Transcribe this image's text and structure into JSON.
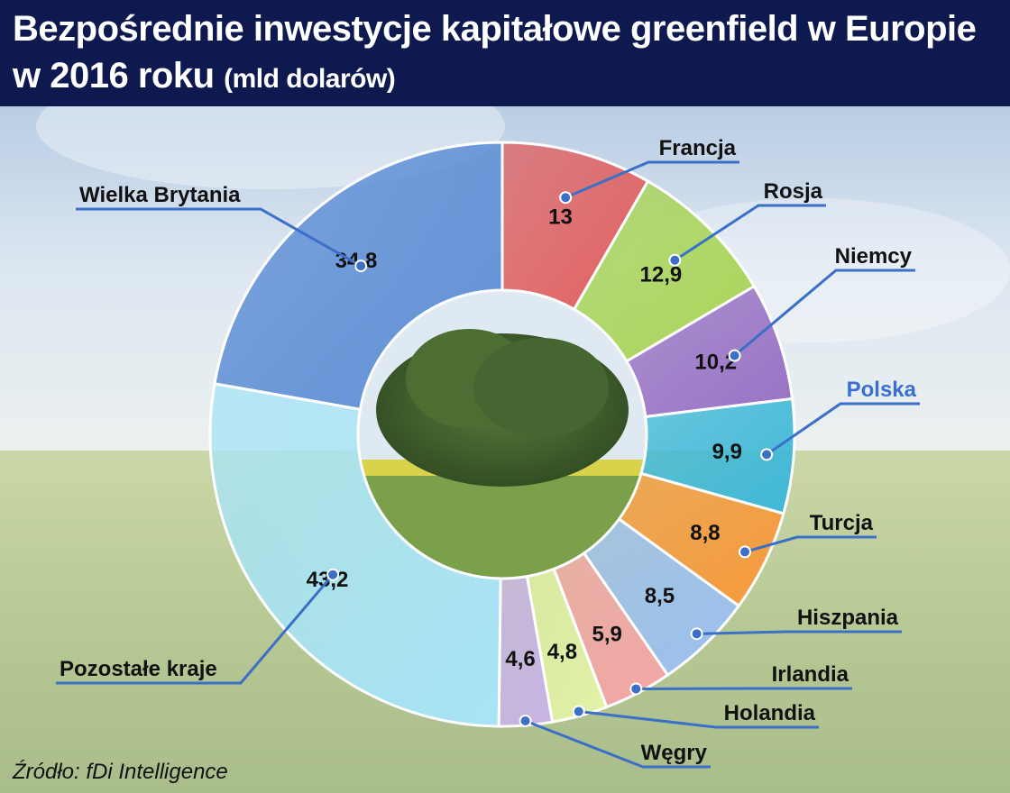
{
  "title": {
    "line1": "Bezpośrednie inwestycje kapitałowe greenfield w Europie",
    "line2_main": "w 2016 roku",
    "line2_unit": "(mld dolarów)"
  },
  "source": "Źródło: fDi Intelligence",
  "colors": {
    "header": "#0e1a4f",
    "leader_line": "#3b6fc8",
    "highlight_label": "#3a6fd0"
  },
  "chart_data": {
    "type": "pie",
    "variant": "donut",
    "title": "Bezpośrednie inwestycje kapitałowe greenfield w Europie w 2016 roku (mld dolarów)",
    "start": "12 o'clock, clockwise",
    "slices": [
      {
        "label": "Francja",
        "value": 13,
        "display": "13",
        "color": "#e06060"
      },
      {
        "label": "Rosja",
        "value": 12.9,
        "display": "12,9",
        "color": "#a8d457"
      },
      {
        "label": "Niemcy",
        "value": 10.2,
        "display": "10,2",
        "color": "#9872c4"
      },
      {
        "label": "Polska",
        "value": 9.9,
        "display": "9,9",
        "color": "#3fb8d8",
        "highlight": true
      },
      {
        "label": "Turcja",
        "value": 8.8,
        "display": "8,8",
        "color": "#f79a3c"
      },
      {
        "label": "Hiszpania",
        "value": 8.5,
        "display": "8,5",
        "color": "#9cc0f0"
      },
      {
        "label": "Irlandia",
        "value": 5.9,
        "display": "5,9",
        "color": "#f4a6a6"
      },
      {
        "label": "Holandia",
        "value": 4.8,
        "display": "4,8",
        "color": "#e2f2a6"
      },
      {
        "label": "Węgry",
        "value": 4.6,
        "display": "4,6",
        "color": "#c8b4e6"
      },
      {
        "label": "Pozostałe kraje",
        "value": 43.2,
        "display": "43,2",
        "color": "#a8e4f6"
      },
      {
        "label": "Wielka Brytania",
        "value": 34.8,
        "display": "34,8",
        "color": "#5f8fd6"
      }
    ]
  }
}
